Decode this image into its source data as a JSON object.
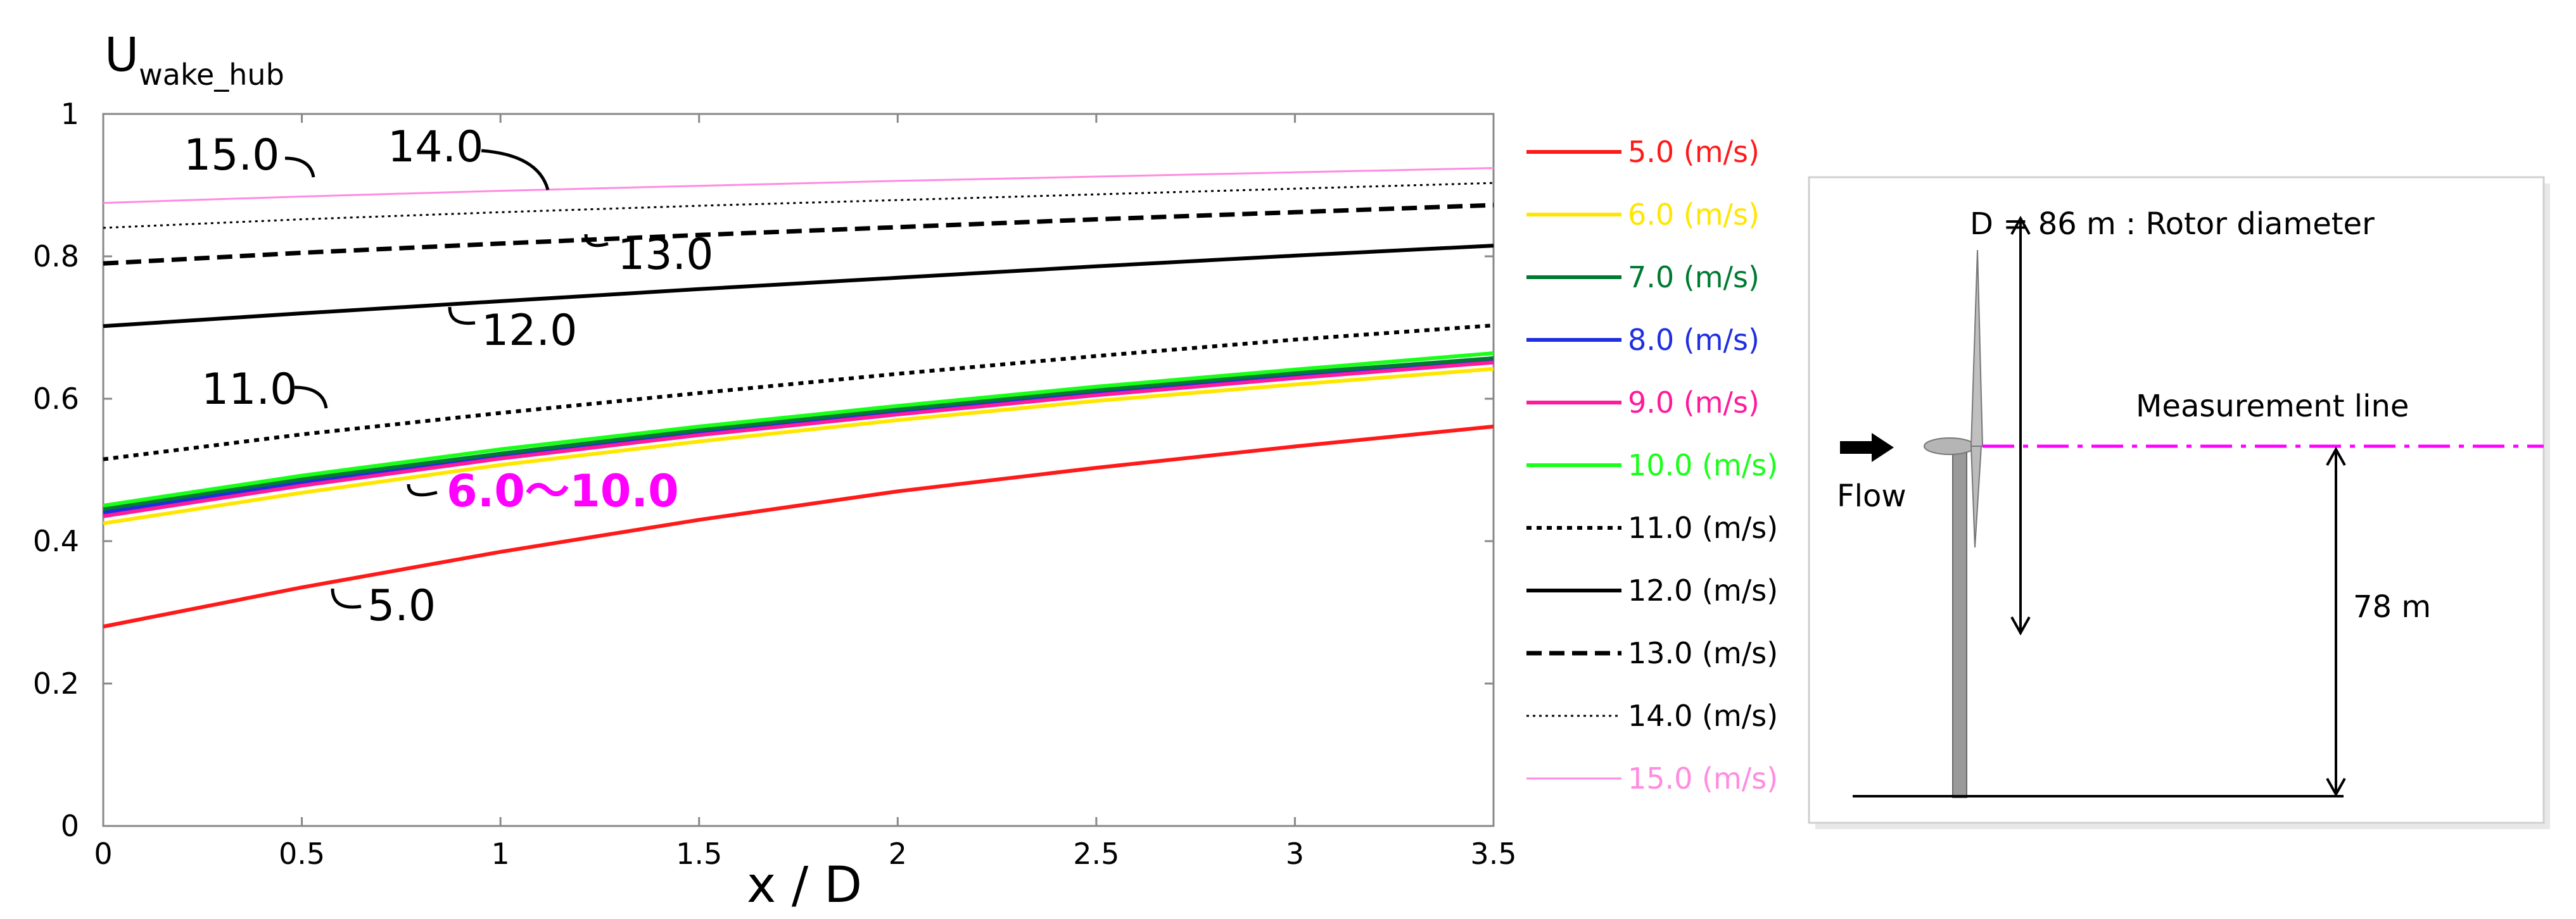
{
  "chart_data": {
    "type": "line",
    "ylabel": "U",
    "ylabel_sub": "wake_hub",
    "xlabel": "x / D",
    "xlim": [
      0,
      3.5
    ],
    "ylim": [
      0,
      1
    ],
    "xticks": [
      "0",
      "0.5",
      "1",
      "1.5",
      "2",
      "2.5",
      "3",
      "3.5"
    ],
    "yticks": [
      "0",
      "0.2",
      "0.4",
      "0.6",
      "0.8",
      "1"
    ],
    "legend_position": "right",
    "series": [
      {
        "name": "5.0 (m/s)",
        "color": "#ff1a1a",
        "style": "solid",
        "x": [
          0,
          0.5,
          1,
          1.5,
          2,
          2.5,
          3,
          3.5
        ],
        "values": [
          0.28,
          0.335,
          0.385,
          0.43,
          0.47,
          0.503,
          0.533,
          0.561
        ]
      },
      {
        "name": "6.0 (m/s)",
        "color": "#ffe600",
        "style": "solid",
        "x": [
          0,
          0.5,
          1,
          1.5,
          2,
          2.5,
          3,
          3.5
        ],
        "values": [
          0.425,
          0.468,
          0.507,
          0.54,
          0.57,
          0.597,
          0.62,
          0.642
        ]
      },
      {
        "name": "7.0 (m/s)",
        "color": "#007a33",
        "style": "solid",
        "x": [
          0,
          0.5,
          1,
          1.5,
          2,
          2.5,
          3,
          3.5
        ],
        "values": [
          0.445,
          0.487,
          0.523,
          0.556,
          0.585,
          0.612,
          0.636,
          0.657
        ]
      },
      {
        "name": "8.0 (m/s)",
        "color": "#1f2ee0",
        "style": "solid",
        "x": [
          0,
          0.5,
          1,
          1.5,
          2,
          2.5,
          3,
          3.5
        ],
        "values": [
          0.44,
          0.482,
          0.519,
          0.552,
          0.581,
          0.608,
          0.632,
          0.654
        ]
      },
      {
        "name": "9.0 (m/s)",
        "color": "#ff1a9c",
        "style": "solid",
        "x": [
          0,
          0.5,
          1,
          1.5,
          2,
          2.5,
          3,
          3.5
        ],
        "values": [
          0.435,
          0.478,
          0.516,
          0.549,
          0.578,
          0.605,
          0.629,
          0.651
        ]
      },
      {
        "name": "10.0 (m/s)",
        "color": "#1aff1a",
        "style": "solid",
        "x": [
          0,
          0.5,
          1,
          1.5,
          2,
          2.5,
          3,
          3.5
        ],
        "values": [
          0.45,
          0.492,
          0.529,
          0.561,
          0.59,
          0.617,
          0.641,
          0.664
        ]
      },
      {
        "name": "11.0 (m/s)",
        "color": "#000000",
        "style": "dotted",
        "x": [
          0,
          0.5,
          1,
          1.5,
          2,
          2.5,
          3,
          3.5
        ],
        "values": [
          0.515,
          0.55,
          0.58,
          0.608,
          0.635,
          0.66,
          0.683,
          0.703
        ]
      },
      {
        "name": "12.0 (m/s)",
        "color": "#000000",
        "style": "solid",
        "x": [
          0,
          0.5,
          1,
          1.5,
          2,
          2.5,
          3,
          3.5
        ],
        "values": [
          0.702,
          0.72,
          0.737,
          0.754,
          0.77,
          0.786,
          0.801,
          0.815
        ]
      },
      {
        "name": "13.0 (m/s)",
        "color": "#000000",
        "style": "dashed",
        "x": [
          0,
          0.5,
          1,
          1.5,
          2,
          2.5,
          3,
          3.5
        ],
        "values": [
          0.79,
          0.805,
          0.818,
          0.83,
          0.841,
          0.852,
          0.862,
          0.872
        ]
      },
      {
        "name": "14.0 (m/s)",
        "color": "#000000",
        "style": "thindot",
        "x": [
          0,
          0.5,
          1,
          1.5,
          2,
          2.5,
          3,
          3.5
        ],
        "values": [
          0.84,
          0.852,
          0.862,
          0.871,
          0.879,
          0.887,
          0.895,
          0.903
        ]
      },
      {
        "name": "15.0 (m/s)",
        "color": "#ff8ce0",
        "style": "thin",
        "x": [
          0,
          0.5,
          1,
          1.5,
          2,
          2.5,
          3,
          3.5
        ],
        "values": [
          0.875,
          0.884,
          0.892,
          0.899,
          0.906,
          0.912,
          0.918,
          0.924
        ]
      }
    ],
    "annotations": [
      "15.0",
      "14.0",
      "13.0",
      "12.0",
      "11.0",
      "6.0～10.0",
      "5.0"
    ],
    "highlight_color": "#ff00ff"
  },
  "schematic": {
    "title": "D = 86 m : Rotor diameter",
    "measurement_label": "Measurement line",
    "flow_label": "Flow",
    "height_label": "78 m",
    "measurement_color": "#ff00ff"
  }
}
